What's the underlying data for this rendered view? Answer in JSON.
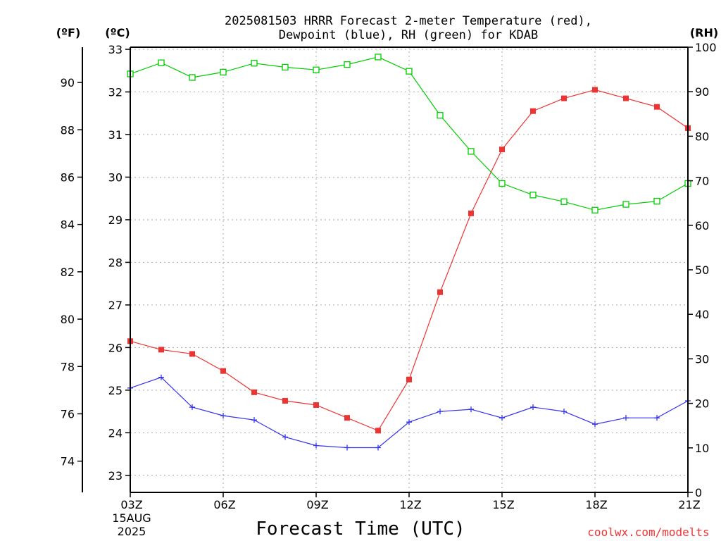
{
  "chart_data": {
    "type": "line",
    "title_line1": "2025081503 HRRR Forecast 2-meter Temperature (red),",
    "title_line2": "Dewpoint (blue), RH (green) for KDAB",
    "left_unit_f": "(ºF)",
    "left_unit_c": "(ºC)",
    "right_unit": "(RH)",
    "xlabel": "Forecast Time (UTC)",
    "credit": "coolwx.com/modelts",
    "date_line1": "15AUG",
    "date_line2": "2025",
    "x_hours": [
      3,
      4,
      5,
      6,
      7,
      8,
      9,
      10,
      11,
      12,
      13,
      14,
      15,
      16,
      17,
      18,
      19,
      20,
      21
    ],
    "x_ticks": [
      {
        "hour": 3,
        "label": "03Z"
      },
      {
        "hour": 6,
        "label": "06Z"
      },
      {
        "hour": 9,
        "label": "09Z"
      },
      {
        "hour": 12,
        "label": "12Z"
      },
      {
        "hour": 15,
        "label": "15Z"
      },
      {
        "hour": 18,
        "label": "18Z"
      },
      {
        "hour": 21,
        "label": "21Z"
      }
    ],
    "c_range": [
      22.6,
      33.05
    ],
    "c_ticks": [
      "23",
      "24",
      "25",
      "26",
      "27",
      "28",
      "29",
      "30",
      "31",
      "32",
      "33"
    ],
    "f_ticks": [
      "74",
      "76",
      "78",
      "80",
      "82",
      "84",
      "86",
      "88",
      "90"
    ],
    "rh_range": [
      0,
      100
    ],
    "rh_ticks": [
      "0",
      "10",
      "20",
      "30",
      "40",
      "50",
      "60",
      "70",
      "80",
      "90",
      "100"
    ],
    "grid": true,
    "series": [
      {
        "name": "Temperature",
        "axis": "C",
        "color": "#ee3333",
        "marker": "filled-square",
        "values": [
          26.15,
          25.95,
          25.85,
          25.45,
          24.95,
          24.75,
          24.65,
          24.35,
          24.05,
          25.25,
          27.3,
          29.15,
          30.65,
          31.55,
          31.85,
          32.05,
          31.85,
          31.65,
          31.15
        ]
      },
      {
        "name": "Dewpoint",
        "axis": "C",
        "color": "#3333ee",
        "marker": "plus",
        "values": [
          25.05,
          25.3,
          24.6,
          24.4,
          24.3,
          23.9,
          23.7,
          23.65,
          23.65,
          24.25,
          24.5,
          24.55,
          24.35,
          24.6,
          24.5,
          24.2,
          24.35,
          24.35,
          24.75
        ]
      },
      {
        "name": "RH",
        "axis": "RH",
        "color": "#00cc00",
        "marker": "open-square",
        "values": [
          94,
          96.5,
          93.2,
          94.4,
          96.4,
          95.5,
          94.9,
          96.1,
          97.8,
          94.6,
          84.7,
          76.6,
          69.4,
          66.8,
          65.3,
          63.4,
          64.7,
          65.4,
          69.4
        ]
      }
    ]
  }
}
